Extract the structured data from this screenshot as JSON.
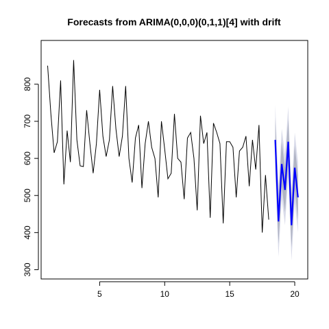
{
  "chart_data": {
    "type": "line",
    "title": "Forecasts from ARIMA(0,0,0)(0,1,1)[4] with drift",
    "xlabel": "",
    "ylabel": "",
    "xlim": [
      0.5,
      21
    ],
    "ylim": [
      275,
      918
    ],
    "x_ticks": [
      5,
      10,
      15,
      20
    ],
    "y_ticks": [
      300,
      400,
      500,
      600,
      700,
      800
    ],
    "grid": false,
    "legend": "none",
    "colors": {
      "observed": "#000000",
      "forecast": "#0000ff",
      "interval_80": "#b0b4c4",
      "interval_95": "#dadcea"
    },
    "observed": {
      "start": 1,
      "frequency": 4,
      "values": [
        850,
        720,
        615,
        645,
        810,
        530,
        675,
        590,
        865,
        650,
        580,
        578,
        730,
        640,
        560,
        640,
        785,
        660,
        605,
        650,
        795,
        680,
        605,
        660,
        795,
        600,
        535,
        655,
        690,
        520,
        640,
        700,
        630,
        600,
        495,
        700,
        625,
        545,
        560,
        720,
        600,
        590,
        490,
        655,
        670,
        600,
        460,
        715,
        640,
        670,
        440,
        695,
        670,
        640,
        425,
        645,
        645,
        630,
        495,
        620,
        630,
        660,
        525,
        650,
        570,
        690,
        400,
        555,
        435
      ]
    },
    "forecast": {
      "start": 18.5,
      "frequency": 4,
      "mean": [
        650,
        430,
        585,
        515,
        645,
        420,
        575,
        495
      ],
      "lo80": [
        590,
        370,
        525,
        455,
        585,
        360,
        515,
        435
      ],
      "hi80": [
        710,
        490,
        645,
        575,
        705,
        480,
        635,
        555
      ],
      "lo95": [
        555,
        335,
        490,
        420,
        550,
        325,
        480,
        400
      ],
      "hi95": [
        745,
        525,
        680,
        610,
        740,
        515,
        670,
        590
      ]
    }
  }
}
